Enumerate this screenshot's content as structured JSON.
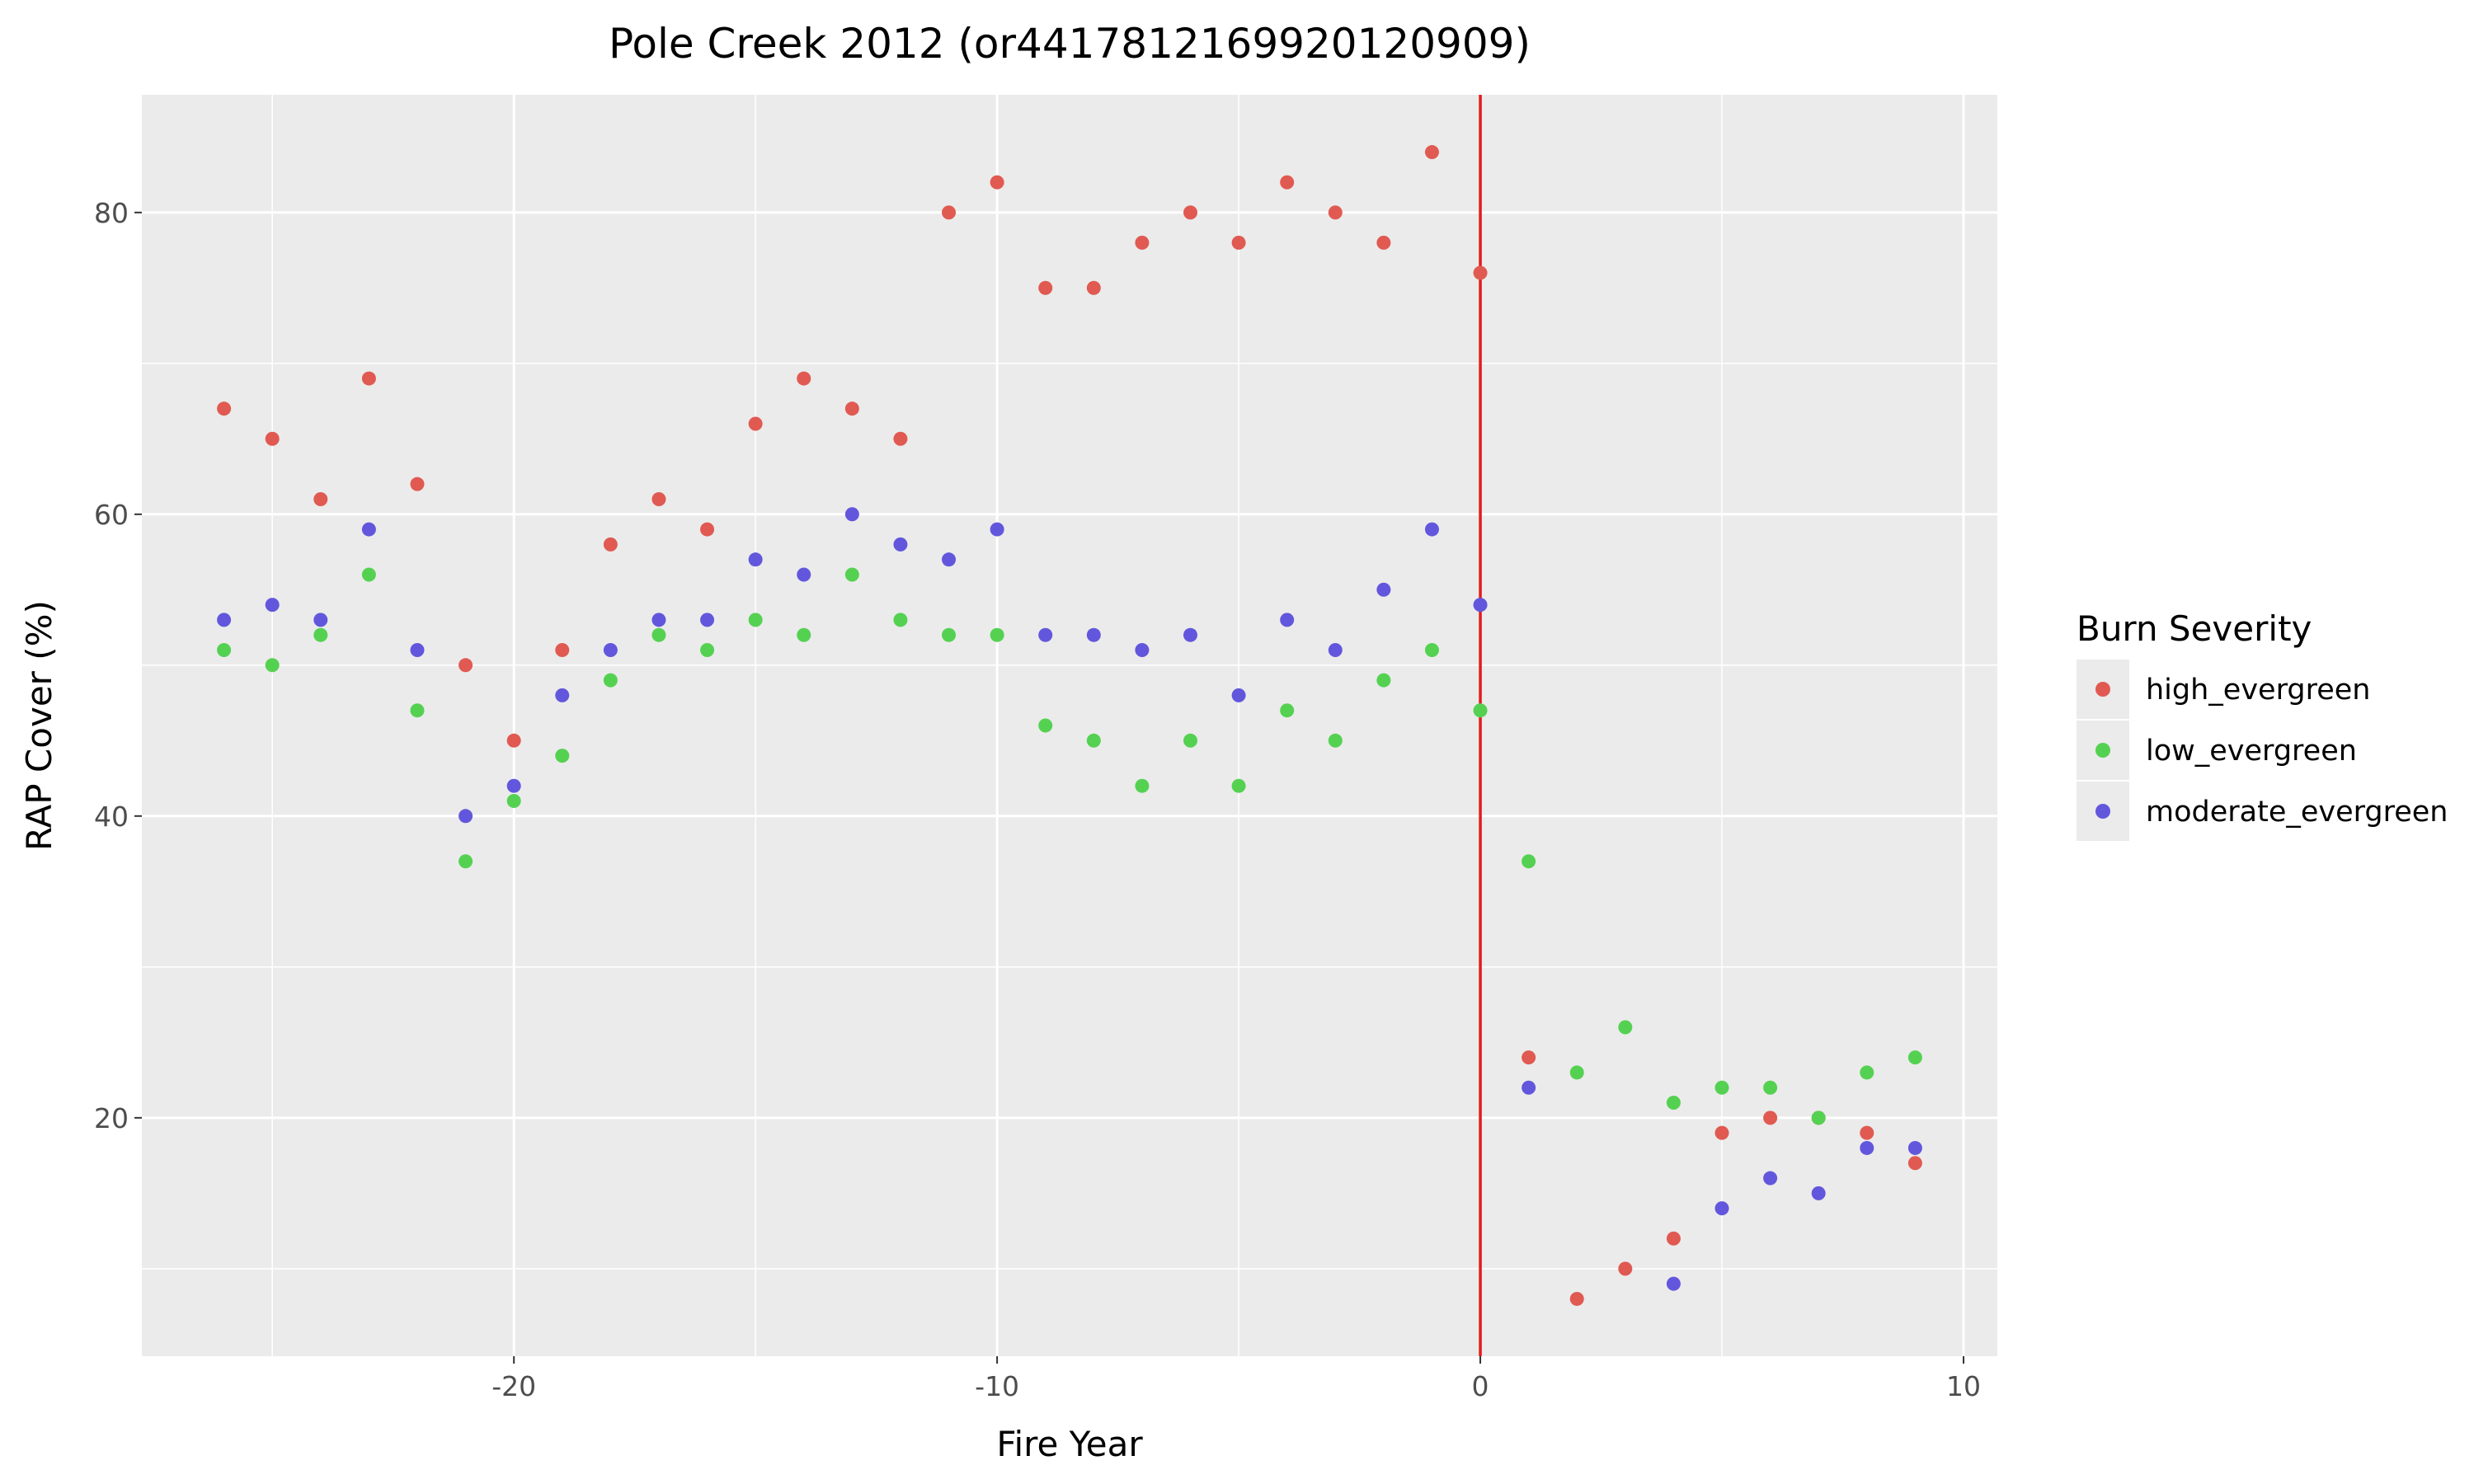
{
  "chart_data": {
    "type": "scatter",
    "title": "Pole Creek 2012 (or4417812169920120909)",
    "xlabel": "Fire Year",
    "ylabel": "RAP Cover (%)",
    "xlim": [
      -27.7,
      10.7
    ],
    "ylim": [
      4.2,
      87.8
    ],
    "x_ticks": [
      -20,
      -10,
      0,
      10
    ],
    "y_ticks": [
      20,
      40,
      60,
      80
    ],
    "x_tick_labels": [
      "-20",
      "-10",
      "0",
      "10"
    ],
    "y_tick_labels": [
      "20",
      "40",
      "60",
      "80"
    ],
    "grid": true,
    "background": "#ebebeb",
    "vline": {
      "x": 0,
      "color": "#e41a1c"
    },
    "legend": {
      "title": "Burn Severity",
      "position": "right"
    },
    "x": [
      -26,
      -25,
      -24,
      -23,
      -22,
      -21,
      -20,
      -19,
      -18,
      -17,
      -16,
      -15,
      -14,
      -13,
      -12,
      -11,
      -10,
      -9,
      -8,
      -7,
      -6,
      -5,
      -4,
      -3,
      -2,
      -1,
      0,
      1,
      2,
      3,
      4,
      5,
      6,
      7,
      8,
      9
    ],
    "series": [
      {
        "name": "high_evergreen",
        "color": "#e05a52",
        "values": [
          67,
          65,
          61,
          69,
          62,
          50,
          45,
          51,
          58,
          61,
          59,
          66,
          69,
          67,
          65,
          80,
          82,
          75,
          75,
          78,
          80,
          78,
          82,
          80,
          78,
          84,
          76,
          24,
          8,
          10,
          12,
          19,
          20,
          20,
          19,
          17
        ]
      },
      {
        "name": "low_evergreen",
        "color": "#55d152",
        "values": [
          51,
          50,
          52,
          56,
          47,
          37,
          41,
          44,
          49,
          52,
          51,
          53,
          52,
          56,
          53,
          52,
          52,
          46,
          45,
          42,
          45,
          42,
          47,
          45,
          49,
          51,
          47,
          37,
          23,
          26,
          21,
          22,
          22,
          20,
          23,
          24
        ]
      },
      {
        "name": "moderate_evergreen",
        "color": "#6257dc",
        "values": [
          53,
          54,
          53,
          59,
          51,
          40,
          42,
          48,
          51,
          53,
          53,
          57,
          56,
          60,
          58,
          57,
          59,
          52,
          52,
          51,
          52,
          48,
          53,
          51,
          55,
          59,
          54,
          22,
          null,
          null,
          9,
          14,
          16,
          15,
          18,
          18
        ]
      }
    ]
  }
}
